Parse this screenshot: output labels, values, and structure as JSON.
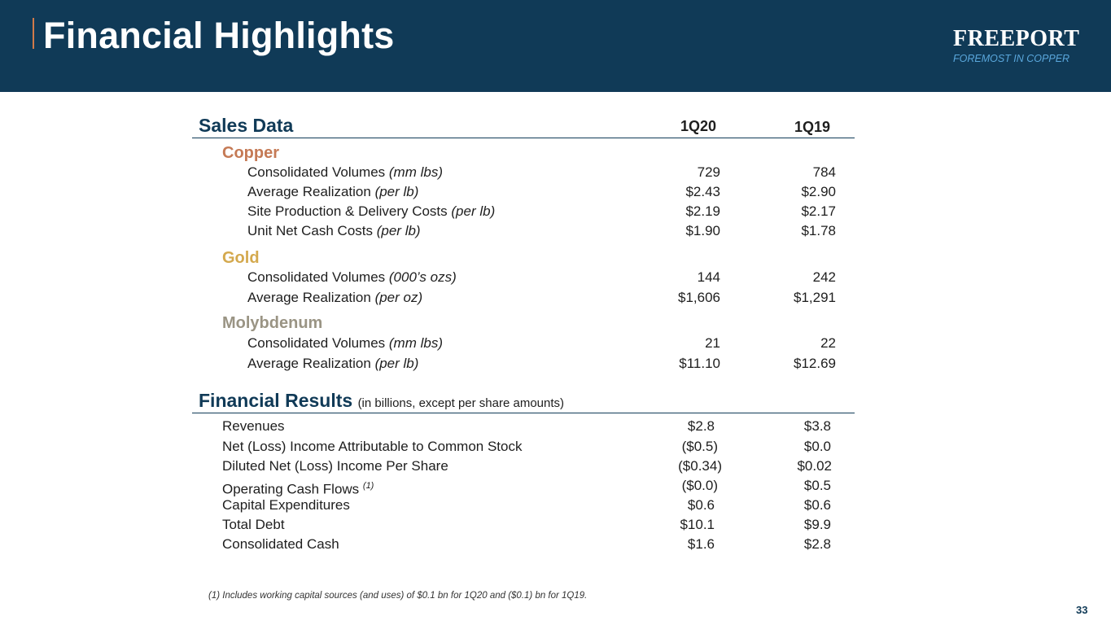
{
  "header": {
    "title": "Financial Highlights",
    "logo_word": "FREEPORT",
    "logo_tagline": "FOREMOST IN COPPER"
  },
  "colors": {
    "header_bg": "#103a57",
    "copper": "#c57a55",
    "gold": "#d4a94e",
    "molybdenum": "#9a9484"
  },
  "sales": {
    "heading": "Sales Data",
    "col1": "1Q20",
    "col2": "1Q19",
    "categories": [
      {
        "name": "Copper",
        "rows": [
          {
            "label": "Consolidated Volumes ",
            "unit": "(mm lbs)",
            "v1": "729",
            "v2": "784"
          },
          {
            "label": "Average Realization ",
            "unit": "(per lb)",
            "v1": "$2.43",
            "v2": "$2.90"
          },
          {
            "label": "Site Production & Delivery Costs ",
            "unit": "(per lb)",
            "v1": "$2.19",
            "v2": "$2.17"
          },
          {
            "label": "Unit Net Cash Costs ",
            "unit": "(per lb)",
            "v1": "$1.90",
            "v2": "$1.78"
          }
        ]
      },
      {
        "name": "Gold",
        "rows": [
          {
            "label": "Consolidated Volumes ",
            "unit": "(000’s ozs)",
            "v1": "144",
            "v2": "242"
          },
          {
            "label": "Average Realization ",
            "unit": "(per oz)",
            "v1": "$1,606",
            "v2": "$1,291"
          }
        ]
      },
      {
        "name": "Molybdenum",
        "rows": [
          {
            "label": "Consolidated Volumes ",
            "unit": "(mm lbs)",
            "v1": "21",
            "v2": "22"
          },
          {
            "label": "Average Realization ",
            "unit": "(per lb)",
            "v1": "$11.10",
            "v2": "$12.69"
          }
        ]
      }
    ]
  },
  "financial": {
    "heading": "Financial Results",
    "note": "(in billions, except per share amounts)",
    "rows": [
      {
        "label": "Revenues",
        "sup": "",
        "v1": "$2.8",
        "v2": "$3.8"
      },
      {
        "label": "Net (Loss) Income Attributable to Common Stock",
        "sup": "",
        "v1": "($0.5)",
        "v2": "$0.0"
      },
      {
        "label": "Diluted Net (Loss) Income Per Share",
        "sup": "",
        "v1": "($0.34)",
        "v2": "$0.02"
      },
      {
        "label": "Operating Cash Flows ",
        "sup": "(1)",
        "v1": "($0.0)",
        "v2": "$0.5"
      },
      {
        "label": "Capital Expenditures",
        "sup": "",
        "v1": "$0.6",
        "v2": "$0.6"
      },
      {
        "label": "Total Debt",
        "sup": "",
        "v1": "$10.1",
        "v2": "$9.9"
      },
      {
        "label": "Consolidated Cash",
        "sup": "",
        "v1": "$1.6",
        "v2": "$2.8"
      }
    ]
  },
  "footnote": "(1) Includes working capital sources (and uses) of $0.1 bn for 1Q20 and ($0.1) bn for 1Q19.",
  "page_number": "33"
}
